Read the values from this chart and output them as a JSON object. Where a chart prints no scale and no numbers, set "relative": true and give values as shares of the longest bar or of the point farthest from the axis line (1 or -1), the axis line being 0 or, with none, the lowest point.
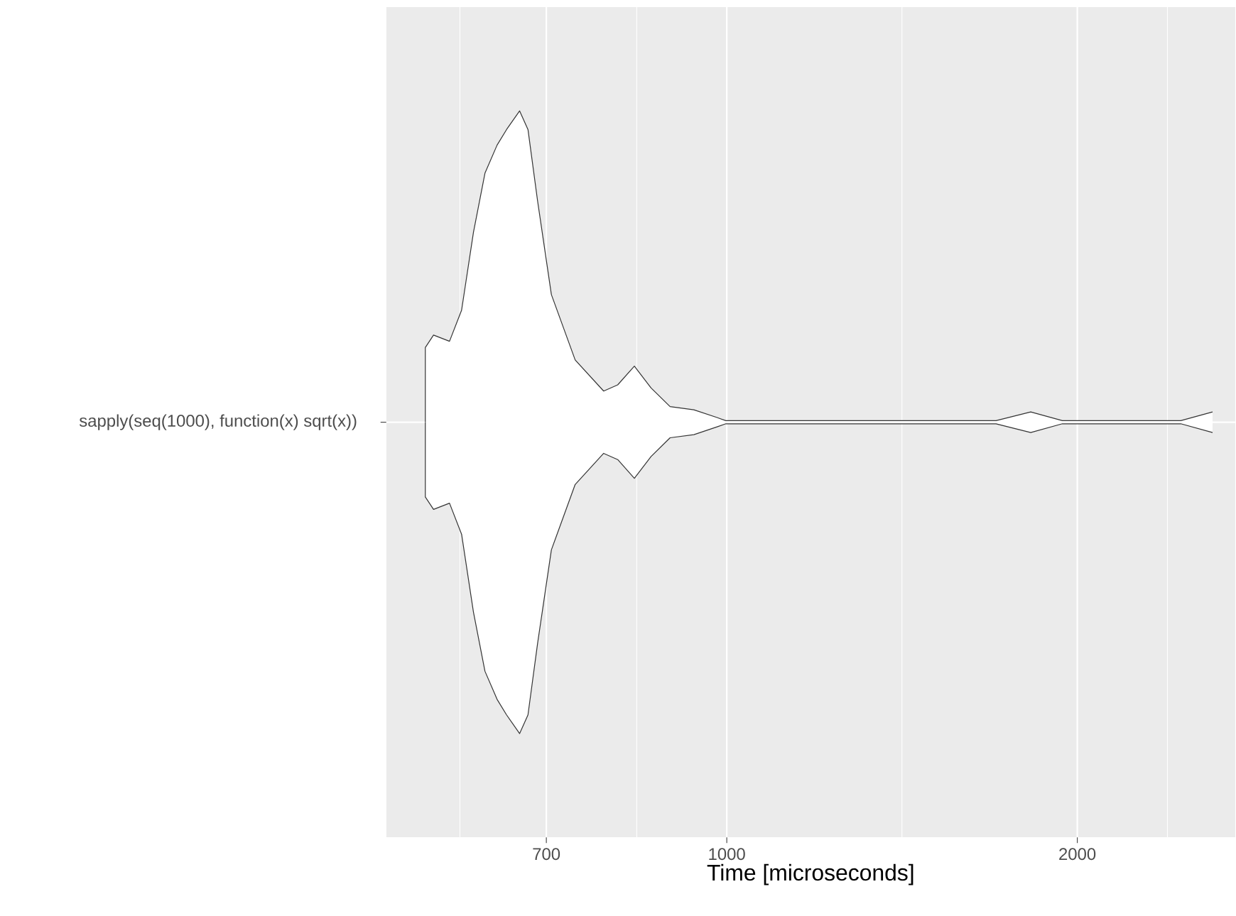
{
  "chart_data": {
    "type": "area",
    "relative": true,
    "log": "x",
    "grid": true,
    "ylabel": "sapply(seq(1000), function(x) sqrt(x))",
    "xlabel": "Time [microseconds]",
    "xlim": [
      510,
      2733
    ],
    "xticks": [
      {
        "value": 590,
        "label": null
      },
      {
        "value": 700,
        "label": "700"
      },
      {
        "value": 837,
        "label": null
      },
      {
        "value": 1000,
        "label": "1000"
      },
      {
        "value": 1414,
        "label": null
      },
      {
        "value": 2000,
        "label": "2000"
      },
      {
        "value": 2390,
        "label": null
      }
    ],
    "series": [
      {
        "color": "#333333",
        "x": [
          551,
          551,
          560,
          578,
          592,
          606,
          620,
          635,
          647,
          664,
          675,
          688,
          707,
          741,
          784,
          806,
          833,
          861,
          894,
          937,
          981,
          998,
          1703,
          1824,
          1942,
          2454,
          2613
        ],
        "values": [
          0,
          0.24,
          0.28,
          0.26,
          0.36,
          0.61,
          0.8,
          0.89,
          0.94,
          1,
          0.94,
          0.71,
          0.41,
          0.2,
          0.1,
          0.12,
          0.18,
          0.11,
          0.05,
          0.04,
          0.015,
          0.005,
          0.005,
          0.033,
          0.005,
          0.005,
          0.033
        ]
      },
      {
        "color": "#333333",
        "x": [
          551,
          551,
          560,
          578,
          592,
          606,
          620,
          635,
          647,
          664,
          675,
          688,
          707,
          741,
          784,
          806,
          833,
          861,
          894,
          937,
          981,
          998,
          1703,
          1824,
          1942,
          2454,
          2613
        ],
        "values": [
          0,
          -0.24,
          -0.28,
          -0.26,
          -0.36,
          -0.61,
          -0.8,
          -0.89,
          -0.94,
          -1,
          -0.94,
          -0.71,
          -0.41,
          -0.2,
          -0.1,
          -0.12,
          -0.18,
          -0.11,
          -0.05,
          -0.04,
          -0.015,
          -0.005,
          -0.005,
          -0.033,
          -0.005,
          -0.005,
          -0.033
        ]
      }
    ]
  }
}
